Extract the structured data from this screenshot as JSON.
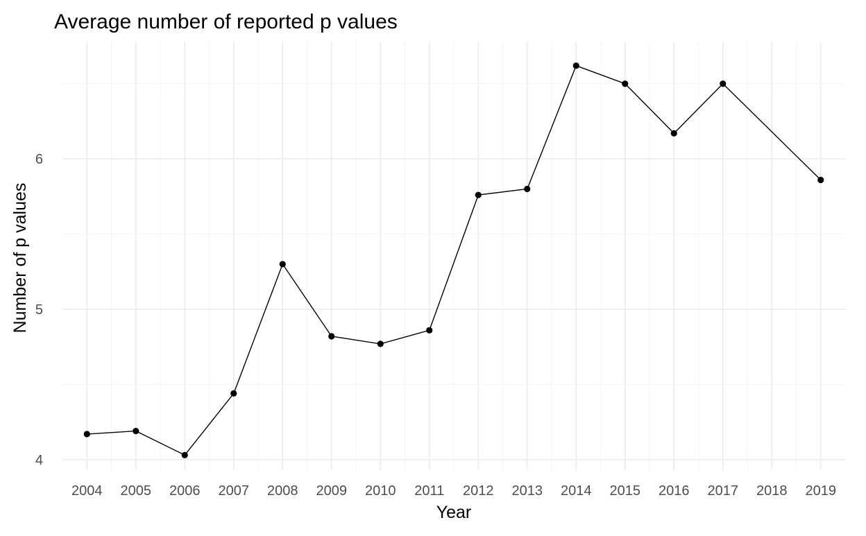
{
  "chart_data": {
    "type": "line",
    "title": "Average number of reported p values",
    "xlabel": "Year",
    "ylabel": "Number of p values",
    "x": [
      2004,
      2005,
      2006,
      2007,
      2008,
      2009,
      2010,
      2011,
      2012,
      2013,
      2014,
      2015,
      2016,
      2017,
      2019
    ],
    "x_ticks": [
      "2004",
      "2005",
      "2006",
      "2007",
      "2008",
      "2009",
      "2010",
      "2011",
      "2012",
      "2013",
      "2014",
      "2015",
      "2016",
      "2017",
      "2018",
      "2019"
    ],
    "xlim": [
      2003.5,
      2019.5
    ],
    "y_ticks": [
      4,
      5,
      6
    ],
    "ylim": [
      3.93,
      6.78
    ],
    "grid": true,
    "legend": "none",
    "series": [
      {
        "values": [
          4.17,
          4.19,
          4.03,
          4.44,
          5.3,
          4.82,
          4.77,
          4.86,
          5.76,
          5.8,
          6.62,
          6.5,
          6.17,
          6.5,
          5.86
        ]
      }
    ],
    "colors": {
      "line": "#000000",
      "point": "#000000",
      "grid_major": "#ebebeb",
      "grid_minor": "#f3f3f3",
      "tick_text": "#4d4d4d",
      "background": "#ffffff"
    }
  }
}
